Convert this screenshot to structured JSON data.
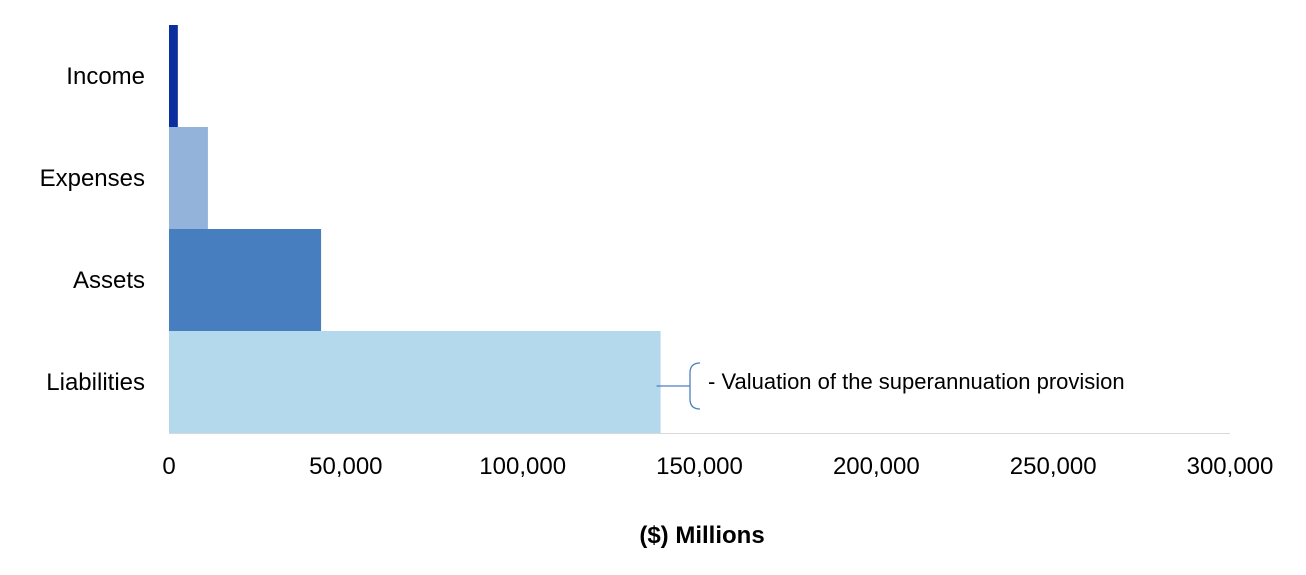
{
  "chart_data": {
    "type": "bar",
    "orientation": "horizontal",
    "title": "",
    "xlabel": "($) Millions",
    "ylabel": "",
    "categories": [
      "Income",
      "Expenses",
      "Assets",
      "Liabilities"
    ],
    "values": [
      2500,
      11000,
      43000,
      139000
    ],
    "colors": [
      "#0b2f9f",
      "#93b3da",
      "#477ec0",
      "#b4d9ec"
    ],
    "xlim": [
      0,
      300000
    ],
    "xticks": [
      0,
      50000,
      100000,
      150000,
      200000,
      250000,
      300000
    ],
    "xtick_labels": [
      "0",
      "50,000",
      "100,000",
      "150,000",
      "200,000",
      "250,000",
      "300,000"
    ],
    "grid": false,
    "legend": "none",
    "annotation": {
      "text": "- Valuation of the superannuation provision",
      "target_category": "Liabilities"
    },
    "bracket_color": "#4a7fc0",
    "axis_color": "#d9d9d9"
  }
}
